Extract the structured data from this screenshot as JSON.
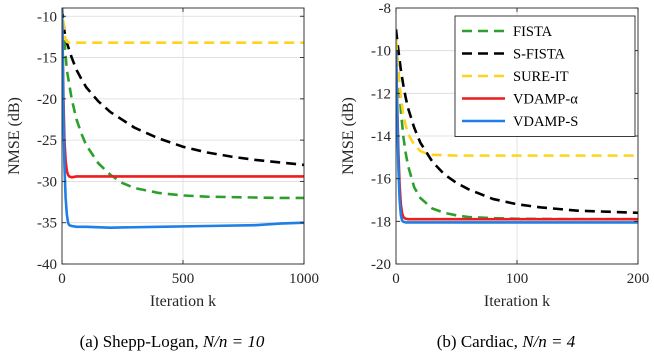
{
  "chart_data": [
    {
      "type": "line",
      "caption_prefix": "(a) Shepp-Logan, ",
      "caption_math": "N/n = 10",
      "xlabel": "Iteration k",
      "ylabel": "NMSE (dB)",
      "xlim": [
        0,
        1000
      ],
      "ylim": [
        -40,
        -9
      ],
      "xticks": [
        0,
        500,
        1000
      ],
      "yticks": [
        -40,
        -35,
        -30,
        -25,
        -20,
        -15,
        -10
      ],
      "grid": true,
      "legend": "none",
      "series": [
        {
          "key": "fista",
          "color": "#2ca02c",
          "dash": "dashed",
          "x": [
            0,
            5,
            10,
            20,
            40,
            60,
            80,
            100,
            150,
            200,
            250,
            300,
            400,
            500,
            600,
            700,
            800,
            900,
            1000
          ],
          "y": [
            -9,
            -11,
            -13,
            -16.5,
            -20,
            -22.5,
            -24.2,
            -25.6,
            -27.8,
            -29.2,
            -30.2,
            -30.8,
            -31.4,
            -31.7,
            -31.85,
            -31.9,
            -31.95,
            -32,
            -32
          ]
        },
        {
          "key": "sfista",
          "color": "#000000",
          "dash": "dashed",
          "x": [
            0,
            5,
            10,
            20,
            40,
            60,
            80,
            100,
            150,
            200,
            300,
            400,
            500,
            600,
            700,
            800,
            900,
            1000
          ],
          "y": [
            -9,
            -10.5,
            -11.8,
            -13.2,
            -15,
            -16.5,
            -17.6,
            -18.6,
            -20.3,
            -21.6,
            -23.5,
            -24.8,
            -25.8,
            -26.5,
            -27,
            -27.4,
            -27.7,
            -28
          ]
        },
        {
          "key": "sureit",
          "color": "#ffd21f",
          "dash": "dashed",
          "x": [
            0,
            5,
            10,
            15,
            20,
            30,
            1000
          ],
          "y": [
            -8.5,
            -10.5,
            -12,
            -12.8,
            -13.1,
            -13.2,
            -13.2
          ]
        },
        {
          "key": "vdampa",
          "color": "#ee1c1c",
          "dash": "solid",
          "x": [
            0,
            3,
            6,
            10,
            15,
            20,
            25,
            30,
            40,
            60,
            100,
            1000
          ],
          "y": [
            -9,
            -14,
            -20,
            -25,
            -27.5,
            -28.7,
            -29.2,
            -29.4,
            -29.5,
            -29.4,
            -29.4,
            -29.4
          ]
        },
        {
          "key": "vdamps",
          "color": "#1e7fe6",
          "dash": "solid",
          "x": [
            0,
            3,
            6,
            10,
            15,
            20,
            25,
            30,
            40,
            60,
            100,
            200,
            400,
            600,
            800,
            900,
            1000
          ],
          "y": [
            -9,
            -15,
            -22,
            -28,
            -32,
            -34,
            -35,
            -35.3,
            -35.4,
            -35.5,
            -35.5,
            -35.6,
            -35.5,
            -35.4,
            -35.3,
            -35.1,
            -35
          ]
        }
      ]
    },
    {
      "type": "line",
      "caption_prefix": "(b) Cardiac, ",
      "caption_math": "N/n = 4",
      "xlabel": "Iteration k",
      "ylabel": "NMSE (dB)",
      "xlim": [
        0,
        200
      ],
      "ylim": [
        -20,
        -8
      ],
      "xticks": [
        0,
        100,
        200
      ],
      "yticks": [
        -20,
        -18,
        -16,
        -14,
        -12,
        -10,
        -8
      ],
      "grid": true,
      "legend": "top-right",
      "series": [
        {
          "key": "fista",
          "name": "FISTA",
          "color": "#2ca02c",
          "dash": "dashed",
          "x": [
            0,
            2,
            4,
            6,
            8,
            10,
            15,
            20,
            30,
            40,
            50,
            60,
            80,
            100,
            150,
            200
          ],
          "y": [
            -9.5,
            -11,
            -12.8,
            -14,
            -14.8,
            -15.4,
            -16.4,
            -16.9,
            -17.4,
            -17.6,
            -17.72,
            -17.8,
            -17.85,
            -17.88,
            -17.9,
            -17.9
          ]
        },
        {
          "key": "sfista",
          "name": "S-FISTA",
          "color": "#000000",
          "dash": "dashed",
          "x": [
            0,
            2,
            4,
            6,
            8,
            10,
            15,
            20,
            30,
            40,
            50,
            60,
            80,
            100,
            120,
            150,
            200
          ],
          "y": [
            -9,
            -10,
            -10.9,
            -11.6,
            -12.2,
            -12.7,
            -13.6,
            -14.3,
            -15.2,
            -15.8,
            -16.2,
            -16.5,
            -16.95,
            -17.2,
            -17.35,
            -17.5,
            -17.6
          ]
        },
        {
          "key": "sureit",
          "name": "SURE-IT",
          "color": "#ffd21f",
          "dash": "dashed",
          "x": [
            0,
            2,
            4,
            6,
            8,
            10,
            15,
            20,
            25,
            30,
            40,
            50,
            200
          ],
          "y": [
            -9.5,
            -11,
            -12.2,
            -13,
            -13.5,
            -13.9,
            -14.4,
            -14.7,
            -14.82,
            -14.88,
            -14.9,
            -14.92,
            -14.92
          ]
        },
        {
          "key": "vdampa",
          "name": "VDAMP-α",
          "color": "#ee1c1c",
          "dash": "solid",
          "x": [
            0,
            1,
            2,
            3,
            4,
            5,
            6,
            8,
            10,
            20,
            200
          ],
          "y": [
            -10,
            -12.5,
            -14.8,
            -16.3,
            -17.2,
            -17.6,
            -17.8,
            -17.88,
            -17.9,
            -17.9,
            -17.9
          ]
        },
        {
          "key": "vdamps",
          "name": "VDAMP-S",
          "color": "#1e7fe6",
          "dash": "solid",
          "x": [
            0,
            1,
            2,
            3,
            4,
            5,
            6,
            8,
            10,
            20,
            50,
            100,
            150,
            200
          ],
          "y": [
            -10,
            -13,
            -15.5,
            -17,
            -17.7,
            -17.95,
            -18.02,
            -18.05,
            -18.05,
            -18.05,
            -18.05,
            -18.05,
            -18.05,
            -18.05
          ]
        }
      ]
    }
  ]
}
